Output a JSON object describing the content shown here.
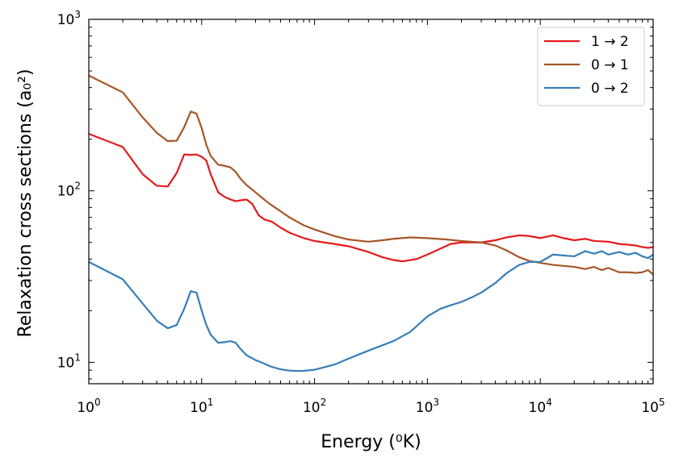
{
  "chart_data": {
    "type": "line",
    "title": "",
    "xlabel": "Energy (⁰K)",
    "ylabel": "Relaxation cross sections (a₀²)",
    "xscale": "log",
    "yscale": "log",
    "xlim": [
      1,
      100000
    ],
    "ylim": [
      7.5,
      1000
    ],
    "x_ticks": [
      {
        "value": 1,
        "base": "10",
        "exp": "0"
      },
      {
        "value": 10,
        "base": "10",
        "exp": "1"
      },
      {
        "value": 100,
        "base": "10",
        "exp": "2"
      },
      {
        "value": 1000,
        "base": "10",
        "exp": "3"
      },
      {
        "value": 10000,
        "base": "10",
        "exp": "4"
      },
      {
        "value": 100000,
        "base": "10",
        "exp": "5"
      }
    ],
    "y_ticks": [
      {
        "value": 10,
        "base": "10",
        "exp": "1"
      },
      {
        "value": 100,
        "base": "10",
        "exp": "2"
      },
      {
        "value": 1000,
        "base": "10",
        "exp": "3"
      }
    ],
    "grid": false,
    "legend_position": "top-right",
    "series": [
      {
        "name": "1 → 2",
        "color": "#e41a1c",
        "points": [
          [
            1,
            215
          ],
          [
            2,
            180
          ],
          [
            3,
            125
          ],
          [
            4,
            107
          ],
          [
            5,
            106
          ],
          [
            6,
            127
          ],
          [
            7,
            163
          ],
          [
            8,
            162
          ],
          [
            9,
            163
          ],
          [
            10,
            158
          ],
          [
            11,
            150
          ],
          [
            12,
            125
          ],
          [
            14,
            98
          ],
          [
            16,
            92
          ],
          [
            18,
            89
          ],
          [
            20,
            87
          ],
          [
            22,
            88
          ],
          [
            25,
            89
          ],
          [
            28,
            84
          ],
          [
            32,
            72
          ],
          [
            36,
            68
          ],
          [
            42,
            66
          ],
          [
            50,
            61
          ],
          [
            60,
            57
          ],
          [
            80,
            53
          ],
          [
            100,
            51
          ],
          [
            150,
            49
          ],
          [
            200,
            47.5
          ],
          [
            300,
            44
          ],
          [
            400,
            41
          ],
          [
            500,
            39.5
          ],
          [
            600,
            38.8
          ],
          [
            800,
            40
          ],
          [
            1000,
            42.5
          ],
          [
            1300,
            46
          ],
          [
            1600,
            49
          ],
          [
            2000,
            50
          ],
          [
            2500,
            50
          ],
          [
            3000,
            50
          ],
          [
            4000,
            51.5
          ],
          [
            5000,
            53.5
          ],
          [
            6500,
            55
          ],
          [
            8000,
            54.5
          ],
          [
            10000,
            53
          ],
          [
            13000,
            55
          ],
          [
            16000,
            53
          ],
          [
            20000,
            51.5
          ],
          [
            25000,
            52.5
          ],
          [
            30000,
            51
          ],
          [
            40000,
            50.5
          ],
          [
            50000,
            49
          ],
          [
            60000,
            48.5
          ],
          [
            70000,
            48
          ],
          [
            80000,
            47
          ],
          [
            90000,
            46.5
          ],
          [
            100000,
            47
          ]
        ]
      },
      {
        "name": "0 → 1",
        "color": "#a65628",
        "points": [
          [
            1,
            470
          ],
          [
            2,
            375
          ],
          [
            3,
            268
          ],
          [
            4,
            218
          ],
          [
            5,
            195
          ],
          [
            6,
            196
          ],
          [
            7,
            235
          ],
          [
            8,
            290
          ],
          [
            9,
            282
          ],
          [
            10,
            232
          ],
          [
            11,
            185
          ],
          [
            12,
            160
          ],
          [
            14,
            142
          ],
          [
            16,
            140
          ],
          [
            18,
            137
          ],
          [
            20,
            129
          ],
          [
            22,
            118
          ],
          [
            25,
            108
          ],
          [
            30,
            98
          ],
          [
            35,
            90
          ],
          [
            40,
            84
          ],
          [
            50,
            76
          ],
          [
            60,
            70
          ],
          [
            80,
            63
          ],
          [
            100,
            59.5
          ],
          [
            150,
            54.5
          ],
          [
            200,
            52
          ],
          [
            300,
            50.5
          ],
          [
            400,
            51.5
          ],
          [
            500,
            52.5
          ],
          [
            700,
            53.5
          ],
          [
            1000,
            53
          ],
          [
            1500,
            52
          ],
          [
            2000,
            51
          ],
          [
            3000,
            50
          ],
          [
            4000,
            48
          ],
          [
            5000,
            45
          ],
          [
            6500,
            41
          ],
          [
            8000,
            39
          ],
          [
            10000,
            38
          ],
          [
            13000,
            37
          ],
          [
            16000,
            36.5
          ],
          [
            20000,
            36
          ],
          [
            25000,
            35
          ],
          [
            30000,
            36
          ],
          [
            35000,
            34.5
          ],
          [
            40000,
            35.5
          ],
          [
            50000,
            33.5
          ],
          [
            60000,
            33.5
          ],
          [
            70000,
            33.2
          ],
          [
            80000,
            33.5
          ],
          [
            90000,
            34.5
          ],
          [
            100000,
            32.5
          ]
        ]
      },
      {
        "name": "0 → 2",
        "color": "#377eb8",
        "points": [
          [
            1,
            38.5
          ],
          [
            2,
            30.5
          ],
          [
            3,
            22
          ],
          [
            4,
            17.5
          ],
          [
            5,
            15.8
          ],
          [
            6,
            16.5
          ],
          [
            7,
            20.5
          ],
          [
            8,
            26
          ],
          [
            9,
            25.5
          ],
          [
            10,
            20
          ],
          [
            11,
            16.5
          ],
          [
            12,
            14.5
          ],
          [
            14,
            13
          ],
          [
            16,
            13.1
          ],
          [
            18,
            13.3
          ],
          [
            20,
            13
          ],
          [
            22,
            12
          ],
          [
            25,
            11
          ],
          [
            30,
            10.3
          ],
          [
            35,
            9.9
          ],
          [
            40,
            9.5
          ],
          [
            50,
            9.1
          ],
          [
            60,
            8.95
          ],
          [
            70,
            8.9
          ],
          [
            80,
            8.92
          ],
          [
            100,
            9.05
          ],
          [
            150,
            9.7
          ],
          [
            200,
            10.5
          ],
          [
            300,
            11.7
          ],
          [
            500,
            13.3
          ],
          [
            700,
            15
          ],
          [
            1000,
            18.5
          ],
          [
            1300,
            20.5
          ],
          [
            1600,
            21.5
          ],
          [
            2000,
            22.5
          ],
          [
            2500,
            24
          ],
          [
            3000,
            25.5
          ],
          [
            4000,
            29
          ],
          [
            5000,
            33
          ],
          [
            6500,
            37
          ],
          [
            8000,
            38.5
          ],
          [
            10000,
            38.5
          ],
          [
            13000,
            42.5
          ],
          [
            16000,
            42
          ],
          [
            20000,
            41.5
          ],
          [
            25000,
            44.5
          ],
          [
            30000,
            43
          ],
          [
            35000,
            44.5
          ],
          [
            40000,
            42.5
          ],
          [
            50000,
            44
          ],
          [
            60000,
            42.5
          ],
          [
            70000,
            43.5
          ],
          [
            80000,
            41.5
          ],
          [
            90000,
            40.5
          ],
          [
            100000,
            42.5
          ]
        ]
      }
    ]
  }
}
